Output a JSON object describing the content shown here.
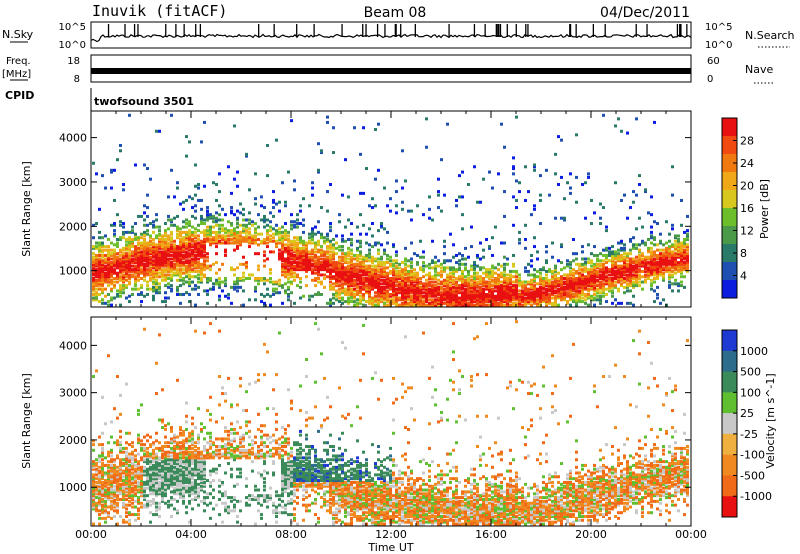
{
  "header": {
    "station": "Inuvik (fitACF)",
    "beam": "Beam 08",
    "date": "04/Dec/2011"
  },
  "top_panels": {
    "nsky_label": "N.Sky",
    "nsky_top": "10^5",
    "nsky_bottom": "10^0",
    "nsearch_label": "N.Search",
    "nsearch_top": "10^5",
    "nsearch_bottom": "10^0",
    "freq_label": "Freq.",
    "freq_unit": "[MHz]",
    "freq_top": "18",
    "freq_bottom": "8",
    "nave_label": "Nave",
    "nave_top": "60",
    "nave_bottom": "0",
    "cpid_label": "CPID",
    "cpid_value": "twofsound 3501"
  },
  "chart_data": [
    {
      "type": "heatmap",
      "quantity": "Power",
      "xlabel": "",
      "ylabel": "Slant Range [km]",
      "x_range_hours": [
        0,
        24
      ],
      "ylim": [
        180,
        4600
      ],
      "yticks": [
        "1000",
        "2000",
        "3000",
        "4000"
      ],
      "colorbar": {
        "label": "Power [dB]",
        "ticks": [
          "4",
          "8",
          "12",
          "16",
          "20",
          "24",
          "28"
        ],
        "colors": [
          "#0b1ee0",
          "#1f4fb0",
          "#2a7a6a",
          "#4a9a4a",
          "#6cbf2a",
          "#d8c81e",
          "#f0a818",
          "#f07a10",
          "#f04a10",
          "#e81010"
        ]
      }
    },
    {
      "type": "heatmap",
      "quantity": "Velocity",
      "xlabel": "Time UT",
      "ylabel": "Slant Range [km]",
      "x_range_hours": [
        0,
        24
      ],
      "ylim": [
        180,
        4600
      ],
      "yticks": [
        "1000",
        "2000",
        "3000",
        "4000"
      ],
      "xticks": [
        "00:00",
        "04:00",
        "08:00",
        "12:00",
        "16:00",
        "20:00",
        "00:00"
      ],
      "colorbar": {
        "label": "Velocity [m s^-1]",
        "ticks": [
          "1000",
          "500",
          "100",
          "25",
          "-25",
          "-100",
          "-500",
          "-1000"
        ],
        "colors": [
          "#1e3ad2",
          "#2d6c8a",
          "#3a8a5a",
          "#5fbf30",
          "#c8c8c8",
          "#f0b040",
          "#f08a20",
          "#f06a18",
          "#e81010"
        ]
      }
    }
  ]
}
